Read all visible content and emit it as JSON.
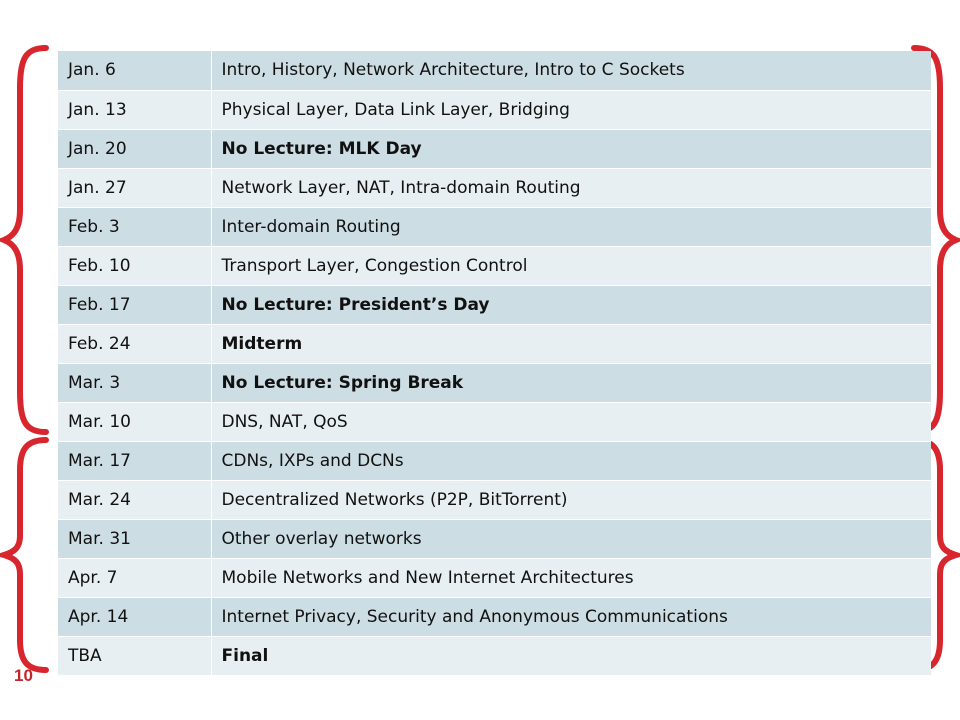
{
  "schedule": [
    {
      "date": "Jan. 6",
      "topic": "Intro, History, Network Architecture, Intro to C Sockets",
      "bold": false
    },
    {
      "date": "Jan. 13",
      "topic": "Physical Layer, Data Link Layer, Bridging",
      "bold": false
    },
    {
      "date": "Jan. 20",
      "topic": "No Lecture: MLK Day",
      "bold": true
    },
    {
      "date": "Jan. 27",
      "topic": "Network Layer, NAT, Intra-domain Routing",
      "bold": false
    },
    {
      "date": "Feb. 3",
      "topic": "Inter-domain Routing",
      "bold": false
    },
    {
      "date": "Feb. 10",
      "topic": "Transport Layer, Congestion Control",
      "bold": false
    },
    {
      "date": "Feb. 17",
      "topic": "No Lecture: President’s Day",
      "bold": true
    },
    {
      "date": "Feb. 24",
      "topic": "Midterm",
      "bold": true
    },
    {
      "date": "Mar. 3",
      "topic": "No Lecture: Spring Break",
      "bold": true
    },
    {
      "date": "Mar. 10",
      "topic": "DNS, NAT, QoS",
      "bold": false
    },
    {
      "date": "Mar. 17",
      "topic": "CDNs, IXPs and DCNs",
      "bold": false
    },
    {
      "date": "Mar. 24",
      "topic": "Decentralized Networks (P2P, BitTorrent)",
      "bold": false
    },
    {
      "date": "Mar. 31",
      "topic": "Other overlay networks",
      "bold": false
    },
    {
      "date": "Apr. 7",
      "topic": "Mobile Networks and New Internet Architectures",
      "bold": false
    },
    {
      "date": "Apr. 14",
      "topic": "Internet Privacy, Security and Anonymous Communications",
      "bold": false
    },
    {
      "date": "TBA",
      "topic": "Final",
      "bold": true
    }
  ],
  "slide_number": "10",
  "colors": {
    "brace": "#d7262e",
    "row_dark": "#cddde4",
    "row_light": "#e8eff2"
  }
}
